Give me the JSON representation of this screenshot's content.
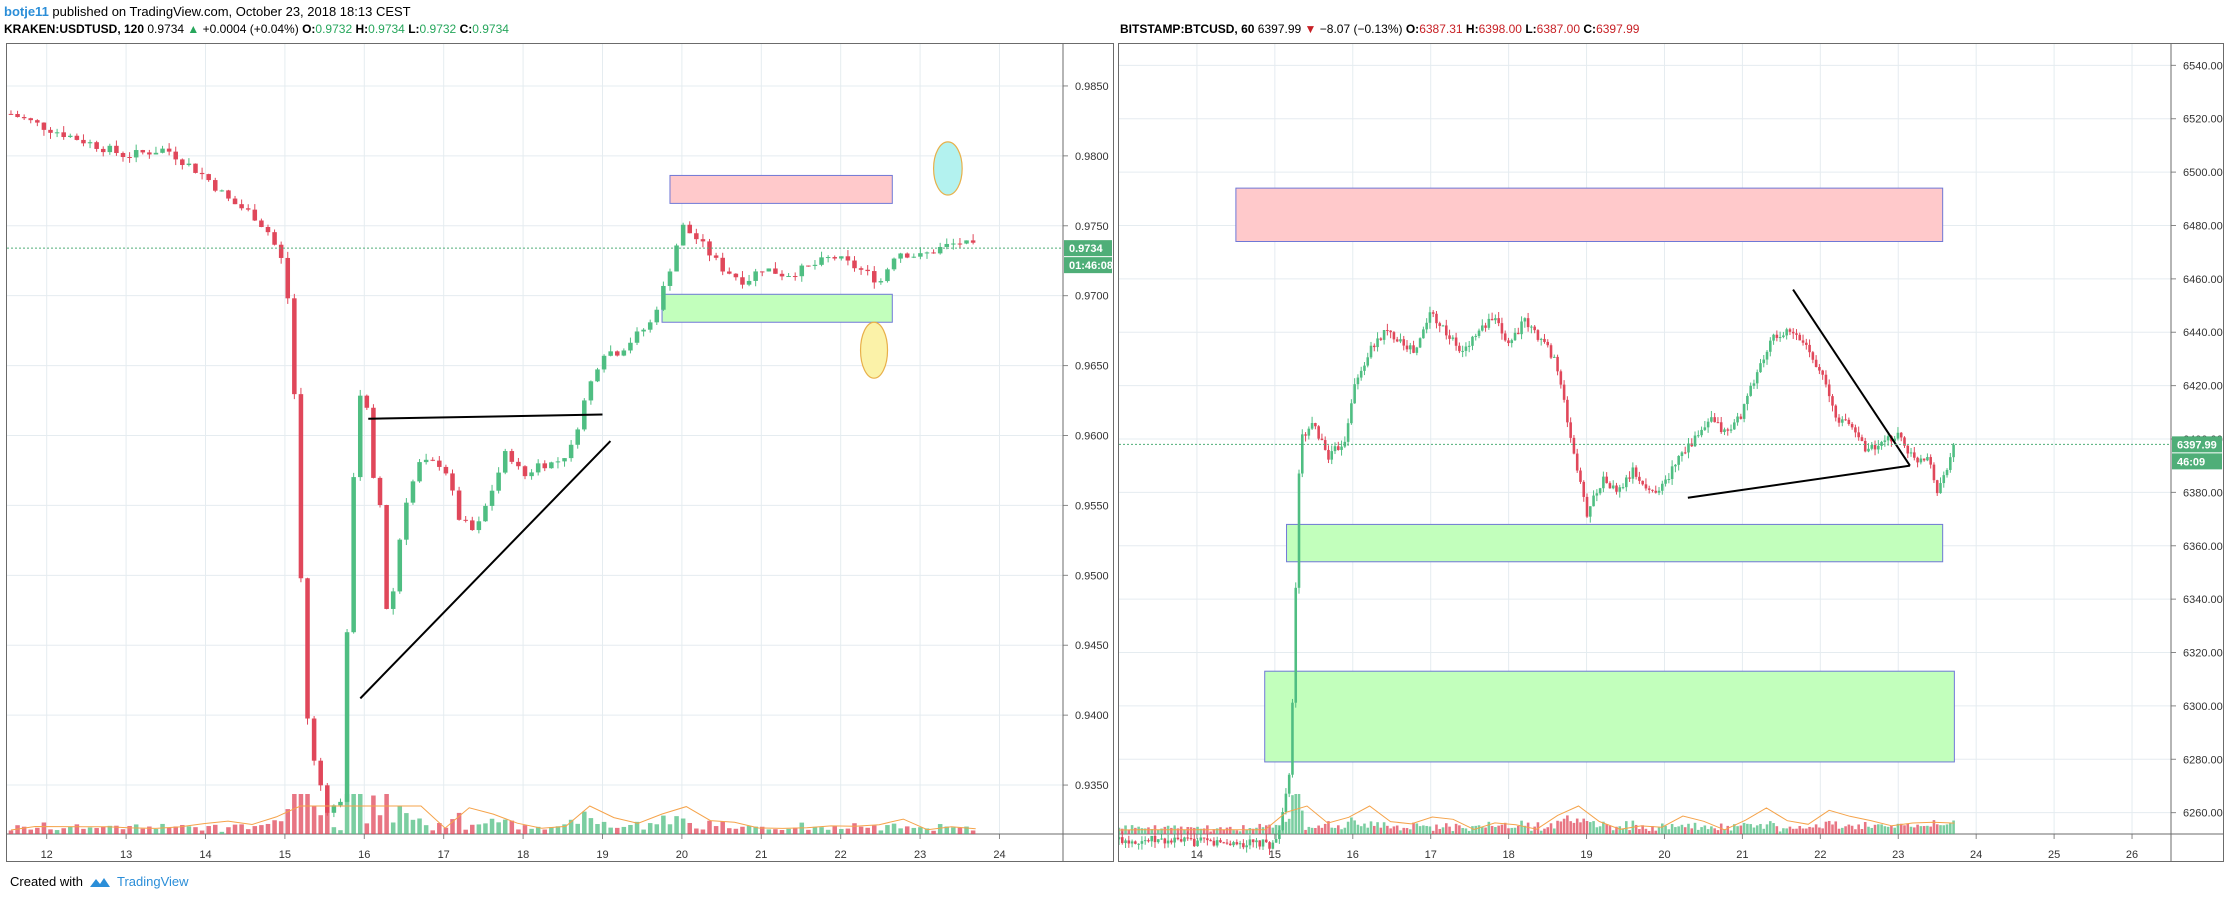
{
  "header": {
    "author": "botje11",
    "published_text": "published on TradingView.com, October 23, 2018 18:13 CEST"
  },
  "left_legend": {
    "symbol": "KRAKEN:USDTUSD, 120",
    "last": "0.9734",
    "change": "+0.0004 (+0.04%)",
    "open_label": "O:",
    "open": "0.9732",
    "high_label": "H:",
    "high": "0.9734",
    "low_label": "L:",
    "low": "0.9732",
    "close_label": "C:",
    "close": "0.9734"
  },
  "right_legend": {
    "symbol": "BITSTAMP:BTCUSD, 60",
    "last": "6397.99",
    "change": "−8.07 (−0.13%)",
    "open_label": "O:",
    "open": "6387.31",
    "high_label": "H:",
    "high": "6398.00",
    "low_label": "L:",
    "low": "6387.00",
    "close_label": "C:",
    "close": "6397.99"
  },
  "footer": {
    "created_with": "Created with",
    "brand": "TradingView"
  },
  "colors": {
    "up": "#4fbe82",
    "down": "#e0475a",
    "resistance_fill": "#ffc9cb",
    "support_fill": "#c2ffbc",
    "box_border": "#6f78d6",
    "grid": "#e5ecf0",
    "ma": "#f5a34a",
    "price_tag": "#4fae78"
  },
  "chart_data": [
    {
      "type": "candlestick",
      "symbol": "KRAKEN:USDTUSD",
      "interval": "120",
      "x_ticks": [
        "12",
        "13",
        "14",
        "15",
        "16",
        "17",
        "18",
        "19",
        "20",
        "21",
        "22",
        "23",
        "24"
      ],
      "y_ticks": [
        "0.9850",
        "0.9800",
        "0.9750",
        "0.9700",
        "0.9650",
        "0.9600",
        "0.9550",
        "0.9500",
        "0.9450",
        "0.9400",
        "0.9350"
      ],
      "ylim": [
        0.9315,
        0.988
      ],
      "xlim": [
        11.5,
        24.8
      ],
      "current_price_label": "0.9734",
      "countdown_label": "01:46:08",
      "close_path": [
        [
          11.55,
          0.983
        ],
        [
          12.0,
          0.982
        ],
        [
          12.5,
          0.981
        ],
        [
          13.0,
          0.98
        ],
        [
          13.5,
          0.9805
        ],
        [
          14.0,
          0.9785
        ],
        [
          14.3,
          0.9768
        ],
        [
          14.6,
          0.9758
        ],
        [
          14.8,
          0.9745
        ],
        [
          15.0,
          0.972
        ],
        [
          15.1,
          0.966
        ],
        [
          15.2,
          0.95
        ],
        [
          15.3,
          0.938
        ],
        [
          15.4,
          0.936
        ],
        [
          15.55,
          0.933
        ],
        [
          15.7,
          0.934
        ],
        [
          15.9,
          0.962
        ],
        [
          16.0,
          0.964
        ],
        [
          16.1,
          0.957
        ],
        [
          16.2,
          0.955
        ],
        [
          16.3,
          0.946
        ],
        [
          16.5,
          0.955
        ],
        [
          16.7,
          0.958
        ],
        [
          17.0,
          0.958
        ],
        [
          17.2,
          0.954
        ],
        [
          17.4,
          0.953
        ],
        [
          17.6,
          0.956
        ],
        [
          17.8,
          0.959
        ],
        [
          18.0,
          0.957
        ],
        [
          18.2,
          0.958
        ],
        [
          18.4,
          0.958
        ],
        [
          18.6,
          0.959
        ],
        [
          18.8,
          0.963
        ],
        [
          19.0,
          0.966
        ],
        [
          19.2,
          0.966
        ],
        [
          19.4,
          0.967
        ],
        [
          19.6,
          0.968
        ],
        [
          19.8,
          0.971
        ],
        [
          20.0,
          0.975
        ],
        [
          20.2,
          0.974
        ],
        [
          20.5,
          0.972
        ],
        [
          20.8,
          0.971
        ],
        [
          21.0,
          0.972
        ],
        [
          21.3,
          0.9715
        ],
        [
          21.6,
          0.972
        ],
        [
          21.9,
          0.9728
        ],
        [
          22.2,
          0.972
        ],
        [
          22.5,
          0.971
        ],
        [
          22.7,
          0.9732
        ],
        [
          23.0,
          0.9728
        ],
        [
          23.3,
          0.9735
        ],
        [
          23.5,
          0.9738
        ],
        [
          23.7,
          0.9734
        ]
      ],
      "zones": [
        {
          "kind": "resistance",
          "x": [
            19.85,
            22.65
          ],
          "y": [
            0.9766,
            0.9786
          ]
        },
        {
          "kind": "support",
          "x": [
            19.75,
            22.65
          ],
          "y": [
            0.9681,
            0.9701
          ]
        }
      ],
      "trendlines": [
        {
          "from": [
            16.05,
            0.9612
          ],
          "to": [
            19.0,
            0.9615
          ]
        },
        {
          "from": [
            15.95,
            0.9412
          ],
          "to": [
            19.1,
            0.9596
          ]
        }
      ],
      "ellipses": [
        {
          "x": 23.35,
          "y": 0.9791,
          "rx": 0.18,
          "ry": 0.0019,
          "fill": "#b3f2ef"
        },
        {
          "x": 22.42,
          "y": 0.9661,
          "rx": 0.17,
          "ry": 0.002,
          "fill": "#fbf2a8"
        }
      ]
    },
    {
      "type": "candlestick",
      "symbol": "BITSTAMP:BTCUSD",
      "interval": "60",
      "x_ticks": [
        "14",
        "15",
        "16",
        "17",
        "18",
        "19",
        "20",
        "21",
        "22",
        "23",
        "24",
        "25",
        "26"
      ],
      "y_ticks": [
        "6540.00",
        "6520.00",
        "6500.00",
        "6480.00",
        "6460.00",
        "6440.00",
        "6420.00",
        "6400.00",
        "6380.00",
        "6360.00",
        "6340.00",
        "6320.00",
        "6300.00",
        "6280.00",
        "6260.00"
      ],
      "ylim": [
        6252,
        6548
      ],
      "xlim": [
        13.0,
        26.5
      ],
      "current_price_label": "6397.99",
      "countdown_label": "46:09",
      "close_path": [
        [
          13.0,
          6250
        ],
        [
          15.0,
          6248
        ],
        [
          15.18,
          6270
        ],
        [
          15.25,
          6320
        ],
        [
          15.3,
          6385
        ],
        [
          15.35,
          6400
        ],
        [
          15.5,
          6405
        ],
        [
          15.7,
          6393
        ],
        [
          15.9,
          6400
        ],
        [
          16.0,
          6418
        ],
        [
          16.2,
          6432
        ],
        [
          16.4,
          6440
        ],
        [
          16.6,
          6438
        ],
        [
          16.8,
          6432
        ],
        [
          17.0,
          6448
        ],
        [
          17.2,
          6440
        ],
        [
          17.4,
          6432
        ],
        [
          17.6,
          6440
        ],
        [
          17.8,
          6445
        ],
        [
          18.0,
          6436
        ],
        [
          18.2,
          6444
        ],
        [
          18.4,
          6438
        ],
        [
          18.6,
          6430
        ],
        [
          18.8,
          6400
        ],
        [
          19.0,
          6372
        ],
        [
          19.2,
          6385
        ],
        [
          19.4,
          6380
        ],
        [
          19.6,
          6388
        ],
        [
          19.8,
          6380
        ],
        [
          20.0,
          6383
        ],
        [
          20.2,
          6395
        ],
        [
          20.4,
          6400
        ],
        [
          20.6,
          6407
        ],
        [
          20.8,
          6402
        ],
        [
          21.0,
          6410
        ],
        [
          21.2,
          6426
        ],
        [
          21.4,
          6438
        ],
        [
          21.6,
          6440
        ],
        [
          21.8,
          6436
        ],
        [
          22.0,
          6426
        ],
        [
          22.2,
          6408
        ],
        [
          22.4,
          6405
        ],
        [
          22.6,
          6396
        ],
        [
          22.8,
          6398
        ],
        [
          23.0,
          6402
        ],
        [
          23.2,
          6392
        ],
        [
          23.4,
          6394
        ],
        [
          23.5,
          6380
        ],
        [
          23.6,
          6388
        ],
        [
          23.72,
          6398
        ]
      ],
      "zones": [
        {
          "kind": "resistance",
          "x": [
            14.5,
            23.57
          ],
          "y": [
            6474,
            6494
          ]
        },
        {
          "kind": "support",
          "x": [
            15.15,
            23.57
          ],
          "y": [
            6354,
            6368
          ]
        },
        {
          "kind": "support",
          "x": [
            14.87,
            23.72
          ],
          "y": [
            6279,
            6313
          ]
        }
      ],
      "trendlines": [
        {
          "from": [
            21.65,
            6456
          ],
          "to": [
            23.15,
            6390
          ]
        },
        {
          "from": [
            20.3,
            6378
          ],
          "to": [
            23.15,
            6390
          ]
        }
      ],
      "ellipses": []
    }
  ]
}
